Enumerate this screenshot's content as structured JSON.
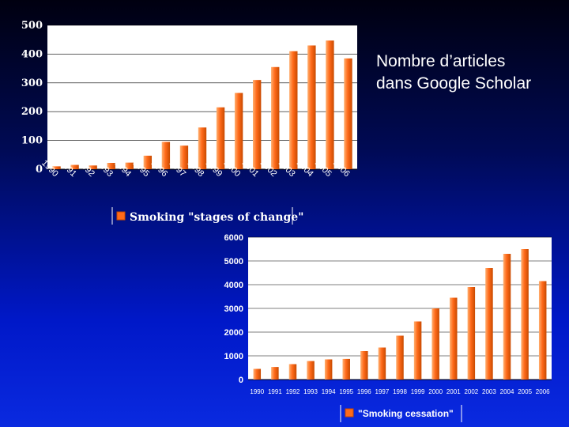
{
  "caption": {
    "line1": "Nombre d’articles",
    "line2": "dans Google Scholar"
  },
  "colors": {
    "bar": "#ff6a1a",
    "bar_edge": "#c84a00",
    "bar_light": "#ffb070",
    "grid": "#ffffff",
    "text": "#ffffff"
  },
  "chart_data": [
    {
      "type": "bar",
      "title": "",
      "xlabel": "",
      "ylabel": "",
      "categories": [
        "1990",
        "1991",
        "1992",
        "1993",
        "1994",
        "1995",
        "1996",
        "1997",
        "1998",
        "1999",
        "2000",
        "2001",
        "2002",
        "2003",
        "2004",
        "2005",
        "2006"
      ],
      "series": [
        {
          "name": "Smoking \"stages of change\"",
          "values": [
            10,
            15,
            13,
            22,
            23,
            47,
            95,
            82,
            145,
            215,
            265,
            310,
            355,
            410,
            430,
            447,
            385
          ]
        }
      ],
      "ylim": [
        0,
        500
      ],
      "yticks": [
        0,
        100,
        200,
        300,
        400,
        500
      ],
      "grid": true,
      "legend": "bottom"
    },
    {
      "type": "bar",
      "title": "",
      "xlabel": "",
      "ylabel": "",
      "categories": [
        "1990",
        "1991",
        "1992",
        "1993",
        "1994",
        "1995",
        "1996",
        "1997",
        "1998",
        "1999",
        "2000",
        "2001",
        "2002",
        "2003",
        "2004",
        "2005",
        "2006"
      ],
      "series": [
        {
          "name": "\"Smoking cessation\"",
          "values": [
            450,
            530,
            650,
            780,
            850,
            870,
            1200,
            1350,
            1850,
            2450,
            3000,
            3450,
            3900,
            4700,
            5300,
            5500,
            4150
          ]
        }
      ],
      "ylim": [
        0,
        6000
      ],
      "yticks": [
        0,
        1000,
        2000,
        3000,
        4000,
        5000,
        6000
      ],
      "grid": true,
      "legend": "bottom"
    }
  ]
}
